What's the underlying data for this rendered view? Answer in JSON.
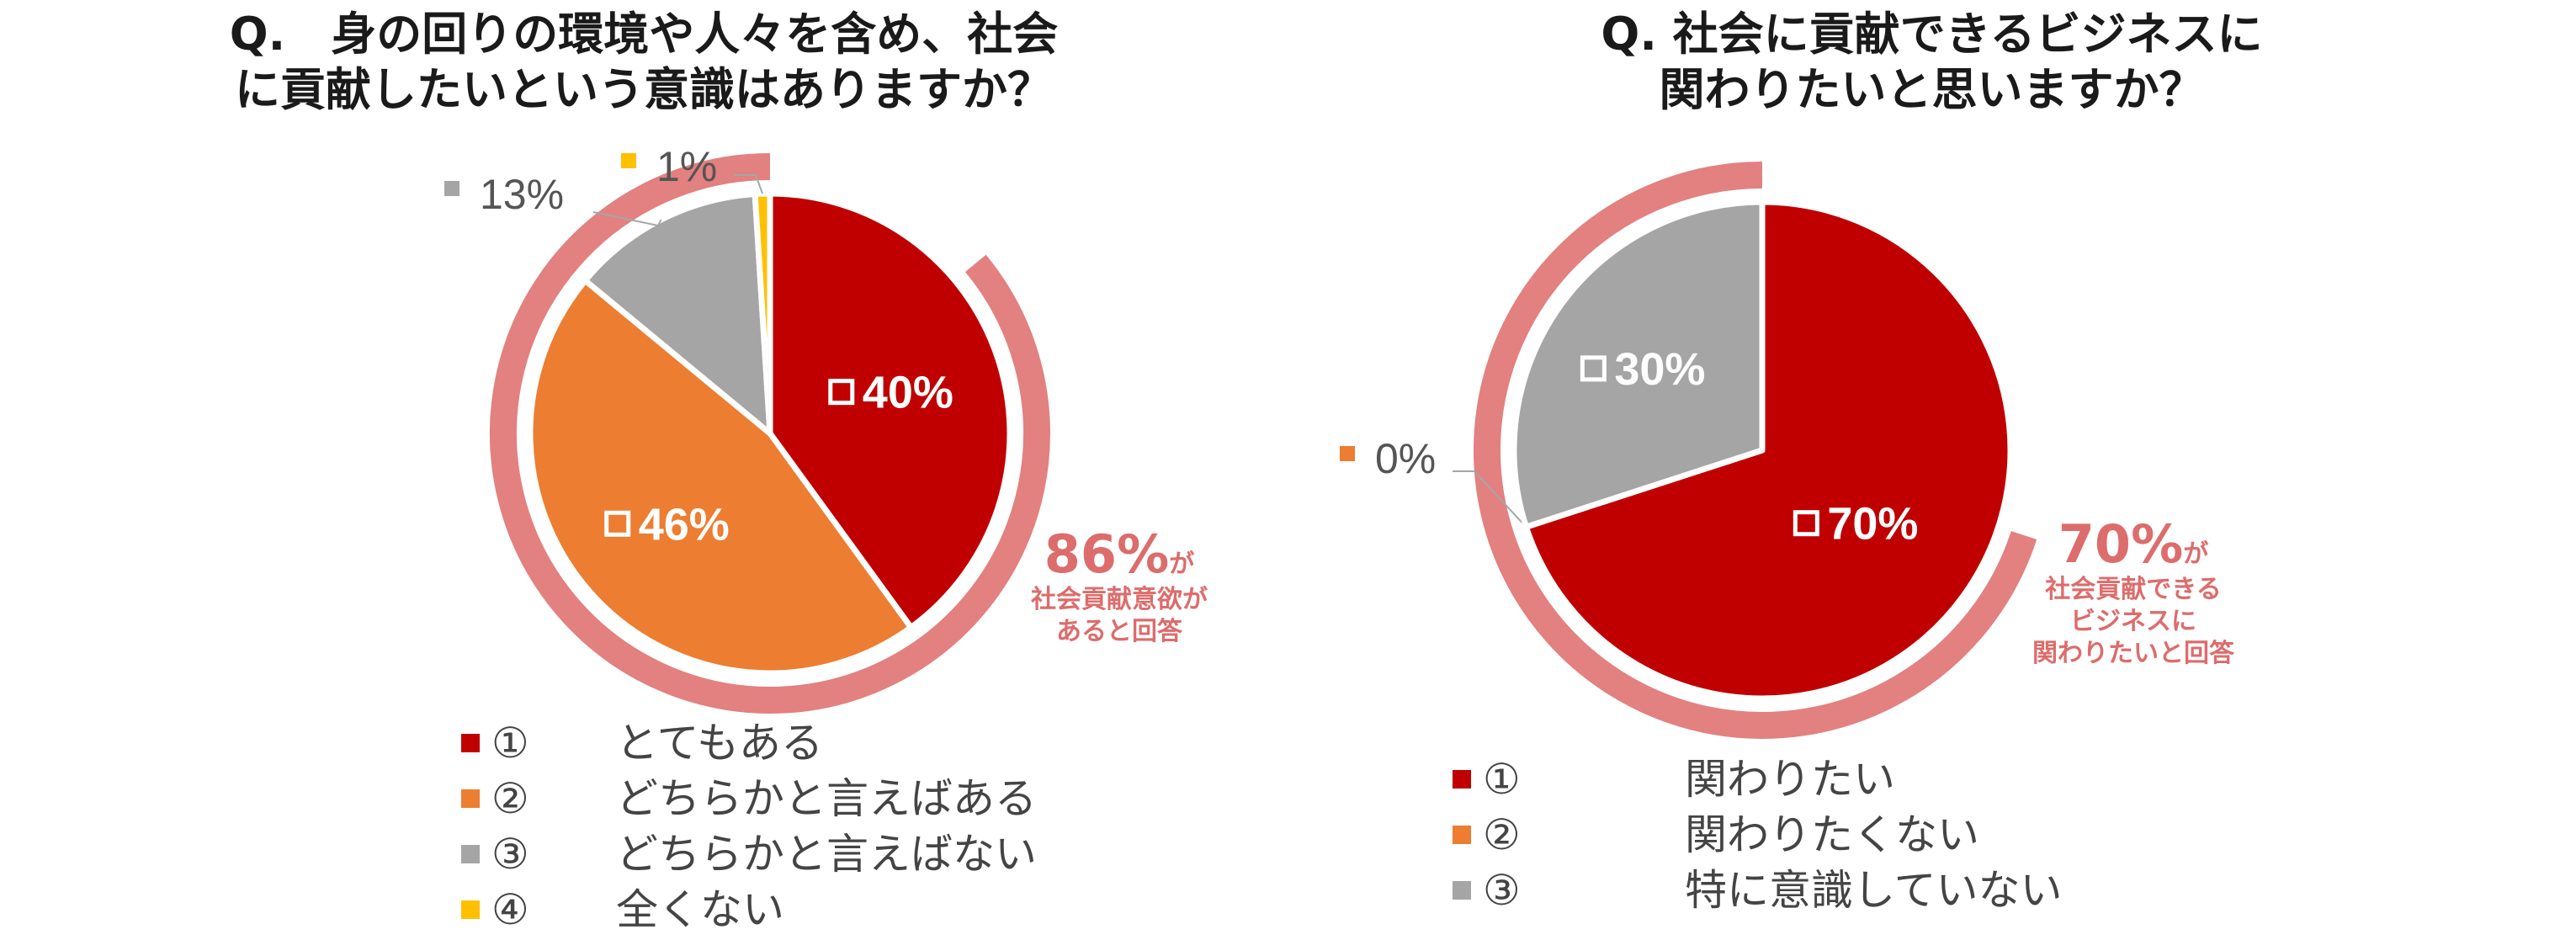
{
  "colors": {
    "red": "#c00000",
    "orange": "#ed7d31",
    "gray": "#a5a5a5",
    "yellow": "#ffc000",
    "ring": "#e38080",
    "callout_text": "#dd6c6c",
    "label_icon": "square-outline-icon"
  },
  "left": {
    "title_line1": "Q.　身の回りの環境や人々を含め、社会",
    "title_line2": "に貢献したいという意識はありますか？",
    "callout_value": "86%",
    "callout_suffix": "が",
    "callout_line1": "社会貢献意欲が",
    "callout_line2": "あると回答",
    "legend": [
      {
        "num": "①",
        "label": "とてもある",
        "color": "#c00000"
      },
      {
        "num": "②",
        "label": "どちらかと言えばある",
        "color": "#ed7d31"
      },
      {
        "num": "③",
        "label": "どちらかと言えばない",
        "color": "#a5a5a5"
      },
      {
        "num": "④",
        "label": "全くない",
        "color": "#ffc000"
      }
    ]
  },
  "right": {
    "title_line1": "Q. 社会に貢献できるビジネスに",
    "title_line2": "関わりたいと思いますか？",
    "callout_value": "70%",
    "callout_suffix": "が",
    "callout_line1": "社会貢献できる",
    "callout_line2": "ビジネスに",
    "callout_line3": "関わりたいと回答",
    "legend": [
      {
        "num": "①",
        "label": "関わりたい",
        "color": "#c00000"
      },
      {
        "num": "②",
        "label": "関わりたくない",
        "color": "#ed7d31"
      },
      {
        "num": "③",
        "label": "特に意識していない",
        "color": "#a5a5a5"
      }
    ]
  },
  "chart_data": [
    {
      "type": "pie",
      "title": "Q.　身の回りの環境や人々を含め、社会に貢献したいという意識はありますか？",
      "categories": [
        "①　とてもある",
        "②　どちらかと言えばある",
        "③　どちらかと言えばない",
        "④　全くない"
      ],
      "values": [
        40,
        46,
        13,
        1
      ],
      "labels": [
        "40%",
        "46%",
        "13%",
        "1%"
      ],
      "colors": [
        "#c00000",
        "#ed7d31",
        "#a5a5a5",
        "#ffc000"
      ],
      "highlight_total": 86,
      "legend_position": "bottom"
    },
    {
      "type": "pie",
      "title": "Q. 社会に貢献できるビジネスに関わりたいと思いますか？",
      "categories": [
        "①　関わりたい",
        "②　関わりたくない",
        "③　特に意識していない"
      ],
      "values": [
        70,
        0,
        30
      ],
      "labels": [
        "70%",
        "0%",
        "30%"
      ],
      "colors": [
        "#c00000",
        "#ed7d31",
        "#a5a5a5"
      ],
      "highlight_total": 70,
      "legend_position": "bottom"
    }
  ]
}
